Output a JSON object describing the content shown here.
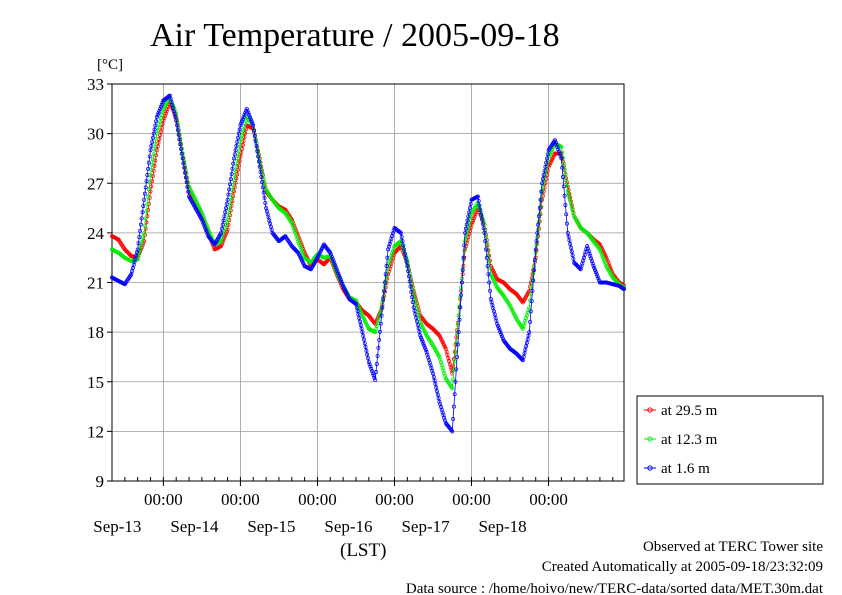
{
  "chart_data": {
    "type": "line",
    "title": "Air Temperature / 2005-09-18",
    "ylabel": "[°C]",
    "xlabel": "(LST)",
    "xlim": [
      "2005-09-12T08:00",
      "2005-09-18T23:30"
    ],
    "ylim": [
      9,
      33
    ],
    "yticks": [
      9,
      12,
      15,
      18,
      21,
      24,
      27,
      30,
      33
    ],
    "xticks": [
      {
        "time": "2005-09-13T00:00",
        "label": "00:00",
        "date": "Sep-13"
      },
      {
        "time": "2005-09-14T00:00",
        "label": "00:00",
        "date": "Sep-14"
      },
      {
        "time": "2005-09-15T00:00",
        "label": "00:00",
        "date": "Sep-15"
      },
      {
        "time": "2005-09-16T00:00",
        "label": "00:00",
        "date": "Sep-16"
      },
      {
        "time": "2005-09-17T00:00",
        "label": "00:00",
        "date": "Sep-17"
      },
      {
        "time": "2005-09-18T00:00",
        "label": "00:00",
        "date": "Sep-18"
      }
    ],
    "grid": true,
    "legend_position": "right",
    "series": [
      {
        "name": "at 29.5 m",
        "color": "#ff0000",
        "points": [
          [
            "2005-09-12T08:00",
            23.8
          ],
          [
            "2005-09-12T10:00",
            23.6
          ],
          [
            "2005-09-12T12:00",
            23.0
          ],
          [
            "2005-09-12T14:00",
            22.6
          ],
          [
            "2005-09-12T16:00",
            22.5
          ],
          [
            "2005-09-12T18:00",
            23.5
          ],
          [
            "2005-09-12T20:00",
            26.5
          ],
          [
            "2005-09-12T22:00",
            29.0
          ],
          [
            "2005-09-13T00:00",
            30.8
          ],
          [
            "2005-09-13T02:00",
            31.9
          ],
          [
            "2005-09-13T04:00",
            31.0
          ],
          [
            "2005-09-13T06:00",
            28.8
          ],
          [
            "2005-09-13T08:00",
            26.5
          ],
          [
            "2005-09-13T10:00",
            25.8
          ],
          [
            "2005-09-13T12:00",
            25.0
          ],
          [
            "2005-09-13T14:00",
            24.0
          ],
          [
            "2005-09-13T16:00",
            23.0
          ],
          [
            "2005-09-13T18:00",
            23.2
          ],
          [
            "2005-09-13T20:00",
            24.2
          ],
          [
            "2005-09-13T22:00",
            26.5
          ],
          [
            "2005-09-14T00:00",
            28.6
          ],
          [
            "2005-09-14T02:00",
            30.5
          ],
          [
            "2005-09-14T04:00",
            30.3
          ],
          [
            "2005-09-14T06:00",
            28.5
          ],
          [
            "2005-09-14T08:00",
            26.5
          ],
          [
            "2005-09-14T10:00",
            26.0
          ],
          [
            "2005-09-14T12:00",
            25.6
          ],
          [
            "2005-09-14T14:00",
            25.4
          ],
          [
            "2005-09-14T16:00",
            24.8
          ],
          [
            "2005-09-14T18:00",
            23.8
          ],
          [
            "2005-09-14T20:00",
            22.8
          ],
          [
            "2005-09-14T22:00",
            22.0
          ],
          [
            "2005-09-15T00:00",
            22.4
          ],
          [
            "2005-09-15T02:00",
            22.1
          ],
          [
            "2005-09-15T04:00",
            22.5
          ],
          [
            "2005-09-15T06:00",
            21.5
          ],
          [
            "2005-09-15T08:00",
            20.6
          ],
          [
            "2005-09-15T10:00",
            20.0
          ],
          [
            "2005-09-15T12:00",
            19.8
          ],
          [
            "2005-09-15T14:00",
            19.3
          ],
          [
            "2005-09-15T16:00",
            19.0
          ],
          [
            "2005-09-15T18:00",
            18.5
          ],
          [
            "2005-09-15T20:00",
            19.4
          ],
          [
            "2005-09-15T22:00",
            21.5
          ],
          [
            "2005-09-16T00:00",
            22.8
          ],
          [
            "2005-09-16T02:00",
            23.2
          ],
          [
            "2005-09-16T04:00",
            22.2
          ],
          [
            "2005-09-16T06:00",
            20.5
          ],
          [
            "2005-09-16T08:00",
            19.0
          ],
          [
            "2005-09-16T10:00",
            18.5
          ],
          [
            "2005-09-16T12:00",
            18.2
          ],
          [
            "2005-09-16T14:00",
            17.8
          ],
          [
            "2005-09-16T16:00",
            17.0
          ],
          [
            "2005-09-16T18:00",
            15.5
          ],
          [
            "2005-09-16T20:00",
            19.0
          ],
          [
            "2005-09-16T22:00",
            23.0
          ],
          [
            "2005-09-17T00:00",
            24.5
          ],
          [
            "2005-09-17T02:00",
            25.5
          ],
          [
            "2005-09-17T04:00",
            24.5
          ],
          [
            "2005-09-17T06:00",
            22.0
          ],
          [
            "2005-09-17T08:00",
            21.2
          ],
          [
            "2005-09-17T10:00",
            21.0
          ],
          [
            "2005-09-17T12:00",
            20.6
          ],
          [
            "2005-09-17T14:00",
            20.3
          ],
          [
            "2005-09-17T16:00",
            19.8
          ],
          [
            "2005-09-17T18:00",
            20.5
          ],
          [
            "2005-09-17T20:00",
            22.5
          ],
          [
            "2005-09-17T22:00",
            26.0
          ],
          [
            "2005-09-18T00:00",
            28.0
          ],
          [
            "2005-09-18T02:00",
            28.8
          ],
          [
            "2005-09-18T04:00",
            28.8
          ],
          [
            "2005-09-18T06:00",
            26.8
          ],
          [
            "2005-09-18T08:00",
            25.0
          ],
          [
            "2005-09-18T10:00",
            24.3
          ],
          [
            "2005-09-18T12:00",
            24.0
          ],
          [
            "2005-09-18T14:00",
            23.6
          ],
          [
            "2005-09-18T16:00",
            23.3
          ],
          [
            "2005-09-18T18:00",
            22.5
          ],
          [
            "2005-09-18T20:00",
            21.5
          ],
          [
            "2005-09-18T22:00",
            21.0
          ],
          [
            "2005-09-18T23:30",
            20.8
          ]
        ]
      },
      {
        "name": "at 12.3 m",
        "color": "#00ee00",
        "points": [
          [
            "2005-09-12T08:00",
            23.0
          ],
          [
            "2005-09-12T10:00",
            22.8
          ],
          [
            "2005-09-12T12:00",
            22.5
          ],
          [
            "2005-09-12T14:00",
            22.3
          ],
          [
            "2005-09-12T16:00",
            22.4
          ],
          [
            "2005-09-12T18:00",
            24.0
          ],
          [
            "2005-09-12T20:00",
            27.5
          ],
          [
            "2005-09-12T22:00",
            30.0
          ],
          [
            "2005-09-13T00:00",
            31.5
          ],
          [
            "2005-09-13T02:00",
            32.2
          ],
          [
            "2005-09-13T04:00",
            31.2
          ],
          [
            "2005-09-13T06:00",
            28.8
          ],
          [
            "2005-09-13T08:00",
            26.8
          ],
          [
            "2005-09-13T10:00",
            26.0
          ],
          [
            "2005-09-13T12:00",
            25.2
          ],
          [
            "2005-09-13T14:00",
            24.2
          ],
          [
            "2005-09-13T16:00",
            23.3
          ],
          [
            "2005-09-13T18:00",
            23.5
          ],
          [
            "2005-09-13T20:00",
            24.8
          ],
          [
            "2005-09-13T22:00",
            27.2
          ],
          [
            "2005-09-14T00:00",
            29.5
          ],
          [
            "2005-09-14T02:00",
            31.0
          ],
          [
            "2005-09-14T04:00",
            30.5
          ],
          [
            "2005-09-14T06:00",
            28.3
          ],
          [
            "2005-09-14T08:00",
            26.6
          ],
          [
            "2005-09-14T10:00",
            26.0
          ],
          [
            "2005-09-14T12:00",
            25.5
          ],
          [
            "2005-09-14T14:00",
            25.2
          ],
          [
            "2005-09-14T16:00",
            24.6
          ],
          [
            "2005-09-14T18:00",
            23.5
          ],
          [
            "2005-09-14T20:00",
            22.5
          ],
          [
            "2005-09-14T22:00",
            22.2
          ],
          [
            "2005-09-15T00:00",
            22.7
          ],
          [
            "2005-09-15T02:00",
            22.5
          ],
          [
            "2005-09-15T04:00",
            22.6
          ],
          [
            "2005-09-15T06:00",
            21.6
          ],
          [
            "2005-09-15T08:00",
            20.8
          ],
          [
            "2005-09-15T10:00",
            20.1
          ],
          [
            "2005-09-15T12:00",
            19.9
          ],
          [
            "2005-09-15T14:00",
            19.0
          ],
          [
            "2005-09-15T16:00",
            18.2
          ],
          [
            "2005-09-15T18:00",
            18.0
          ],
          [
            "2005-09-15T20:00",
            19.5
          ],
          [
            "2005-09-15T22:00",
            22.0
          ],
          [
            "2005-09-16T00:00",
            23.2
          ],
          [
            "2005-09-16T02:00",
            23.5
          ],
          [
            "2005-09-16T04:00",
            22.3
          ],
          [
            "2005-09-16T06:00",
            20.3
          ],
          [
            "2005-09-16T08:00",
            18.6
          ],
          [
            "2005-09-16T10:00",
            17.8
          ],
          [
            "2005-09-16T12:00",
            17.2
          ],
          [
            "2005-09-16T14:00",
            16.5
          ],
          [
            "2005-09-16T16:00",
            15.2
          ],
          [
            "2005-09-16T18:00",
            14.6
          ],
          [
            "2005-09-16T20:00",
            19.0
          ],
          [
            "2005-09-16T22:00",
            23.5
          ],
          [
            "2005-09-17T00:00",
            25.2
          ],
          [
            "2005-09-17T02:00",
            25.8
          ],
          [
            "2005-09-17T04:00",
            24.5
          ],
          [
            "2005-09-17T06:00",
            21.5
          ],
          [
            "2005-09-17T08:00",
            20.7
          ],
          [
            "2005-09-17T10:00",
            20.2
          ],
          [
            "2005-09-17T12:00",
            19.6
          ],
          [
            "2005-09-17T14:00",
            18.8
          ],
          [
            "2005-09-17T16:00",
            18.2
          ],
          [
            "2005-09-17T18:00",
            19.5
          ],
          [
            "2005-09-17T20:00",
            22.8
          ],
          [
            "2005-09-17T22:00",
            26.5
          ],
          [
            "2005-09-18T00:00",
            28.6
          ],
          [
            "2005-09-18T02:00",
            29.4
          ],
          [
            "2005-09-18T04:00",
            29.2
          ],
          [
            "2005-09-18T06:00",
            26.5
          ],
          [
            "2005-09-18T08:00",
            25.0
          ],
          [
            "2005-09-18T10:00",
            24.3
          ],
          [
            "2005-09-18T12:00",
            24.0
          ],
          [
            "2005-09-18T14:00",
            23.5
          ],
          [
            "2005-09-18T16:00",
            23.0
          ],
          [
            "2005-09-18T18:00",
            22.0
          ],
          [
            "2005-09-18T20:00",
            21.3
          ],
          [
            "2005-09-18T22:00",
            20.9
          ],
          [
            "2005-09-18T23:30",
            20.7
          ]
        ]
      },
      {
        "name": "at 1.6 m",
        "color": "#0000ff",
        "points": [
          [
            "2005-09-12T08:00",
            21.3
          ],
          [
            "2005-09-12T10:00",
            21.1
          ],
          [
            "2005-09-12T12:00",
            20.9
          ],
          [
            "2005-09-12T14:00",
            21.5
          ],
          [
            "2005-09-12T16:00",
            23.0
          ],
          [
            "2005-09-12T18:00",
            26.0
          ],
          [
            "2005-09-12T20:00",
            29.0
          ],
          [
            "2005-09-12T22:00",
            31.0
          ],
          [
            "2005-09-13T00:00",
            32.0
          ],
          [
            "2005-09-13T02:00",
            32.3
          ],
          [
            "2005-09-13T04:00",
            30.8
          ],
          [
            "2005-09-13T06:00",
            28.5
          ],
          [
            "2005-09-13T08:00",
            26.2
          ],
          [
            "2005-09-13T10:00",
            25.5
          ],
          [
            "2005-09-13T12:00",
            24.8
          ],
          [
            "2005-09-13T14:00",
            23.8
          ],
          [
            "2005-09-13T16:00",
            23.3
          ],
          [
            "2005-09-13T18:00",
            24.0
          ],
          [
            "2005-09-13T20:00",
            26.0
          ],
          [
            "2005-09-13T22:00",
            28.5
          ],
          [
            "2005-09-14T00:00",
            30.5
          ],
          [
            "2005-09-14T02:00",
            31.5
          ],
          [
            "2005-09-14T04:00",
            30.5
          ],
          [
            "2005-09-14T06:00",
            28.0
          ],
          [
            "2005-09-14T08:00",
            25.5
          ],
          [
            "2005-09-14T10:00",
            24.0
          ],
          [
            "2005-09-14T12:00",
            23.5
          ],
          [
            "2005-09-14T14:00",
            23.8
          ],
          [
            "2005-09-14T16:00",
            23.2
          ],
          [
            "2005-09-14T18:00",
            22.8
          ],
          [
            "2005-09-14T20:00",
            22.0
          ],
          [
            "2005-09-14T22:00",
            21.8
          ],
          [
            "2005-09-15T00:00",
            22.5
          ],
          [
            "2005-09-15T02:00",
            23.3
          ],
          [
            "2005-09-15T04:00",
            22.8
          ],
          [
            "2005-09-15T06:00",
            21.8
          ],
          [
            "2005-09-15T08:00",
            20.8
          ],
          [
            "2005-09-15T10:00",
            20.0
          ],
          [
            "2005-09-15T12:00",
            19.7
          ],
          [
            "2005-09-15T14:00",
            18.0
          ],
          [
            "2005-09-15T16:00",
            16.2
          ],
          [
            "2005-09-15T18:00",
            15.1
          ],
          [
            "2005-09-15T20:00",
            19.0
          ],
          [
            "2005-09-15T22:00",
            23.0
          ],
          [
            "2005-09-16T00:00",
            24.3
          ],
          [
            "2005-09-16T02:00",
            24.0
          ],
          [
            "2005-09-16T04:00",
            22.0
          ],
          [
            "2005-09-16T06:00",
            19.5
          ],
          [
            "2005-09-16T08:00",
            17.8
          ],
          [
            "2005-09-16T10:00",
            16.8
          ],
          [
            "2005-09-16T12:00",
            15.5
          ],
          [
            "2005-09-16T14:00",
            13.8
          ],
          [
            "2005-09-16T16:00",
            12.5
          ],
          [
            "2005-09-16T18:00",
            12.0
          ],
          [
            "2005-09-16T20:00",
            18.0
          ],
          [
            "2005-09-16T22:00",
            24.0
          ],
          [
            "2005-09-17T00:00",
            26.0
          ],
          [
            "2005-09-17T02:00",
            26.2
          ],
          [
            "2005-09-17T04:00",
            24.0
          ],
          [
            "2005-09-17T06:00",
            20.0
          ],
          [
            "2005-09-17T08:00",
            18.5
          ],
          [
            "2005-09-17T10:00",
            17.5
          ],
          [
            "2005-09-17T12:00",
            17.0
          ],
          [
            "2005-09-17T14:00",
            16.7
          ],
          [
            "2005-09-17T16:00",
            16.3
          ],
          [
            "2005-09-17T18:00",
            18.0
          ],
          [
            "2005-09-17T20:00",
            23.0
          ],
          [
            "2005-09-17T22:00",
            27.0
          ],
          [
            "2005-09-18T00:00",
            29.0
          ],
          [
            "2005-09-18T02:00",
            29.6
          ],
          [
            "2005-09-18T04:00",
            28.5
          ],
          [
            "2005-09-18T06:00",
            24.0
          ],
          [
            "2005-09-18T08:00",
            22.2
          ],
          [
            "2005-09-18T10:00",
            21.8
          ],
          [
            "2005-09-18T12:00",
            23.2
          ],
          [
            "2005-09-18T14:00",
            22.0
          ],
          [
            "2005-09-18T16:00",
            21.0
          ],
          [
            "2005-09-18T18:00",
            21.0
          ],
          [
            "2005-09-18T20:00",
            20.9
          ],
          [
            "2005-09-18T22:00",
            20.8
          ],
          [
            "2005-09-18T23:30",
            20.6
          ]
        ]
      }
    ]
  },
  "footer": {
    "line1": "Observed at TERC Tower site",
    "line2": "Created Automatically at 2005-09-18/23:32:09",
    "line3": "Data source : /home/hoivo/new/TERC-data/sorted  data/MET.30m.dat"
  }
}
